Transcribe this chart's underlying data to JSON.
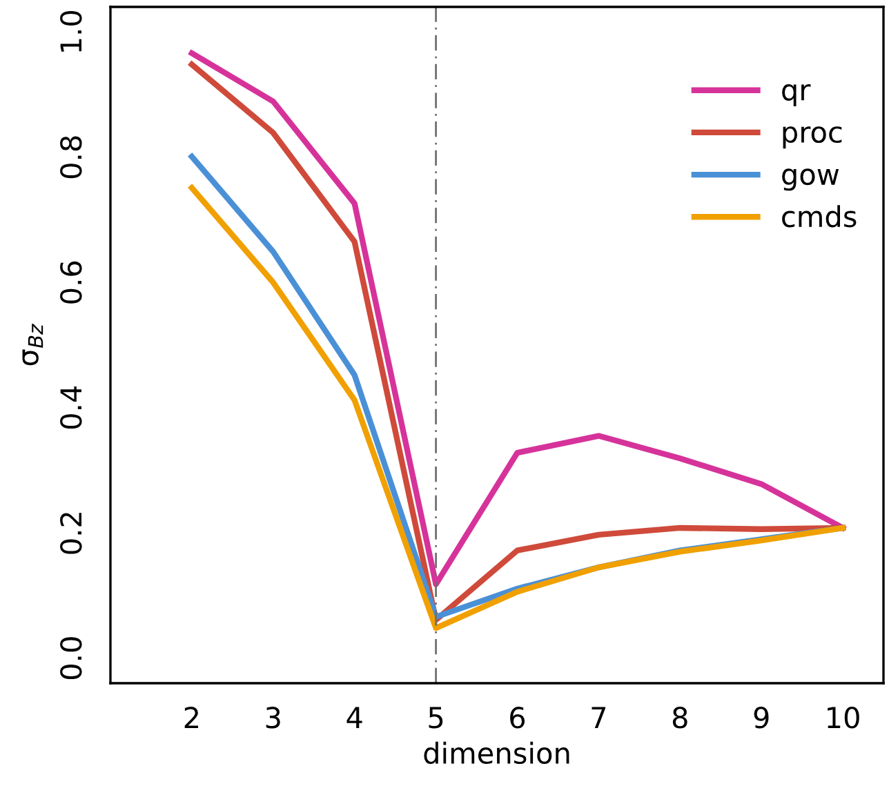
{
  "chart_data": {
    "type": "line",
    "xlabel": "dimension",
    "ylabel": "σ$_{Bz}$",
    "x": [
      2,
      3,
      4,
      5,
      6,
      7,
      8,
      9,
      10
    ],
    "xlim": [
      1,
      10.5
    ],
    "xticks": [
      2,
      3,
      4,
      5,
      6,
      7,
      8,
      9,
      10
    ],
    "ylim": [
      -0.04,
      1.04
    ],
    "yticks": [
      {
        "value": 0,
        "label": "0.0"
      },
      {
        "value": 0.2,
        "label": "0.2"
      },
      {
        "value": 0.4,
        "label": "0.4"
      },
      {
        "value": 0.6,
        "label": "0.6"
      },
      {
        "value": 0.8,
        "label": "0.8"
      },
      {
        "value": 1,
        "label": "1.0"
      }
    ],
    "series": [
      {
        "name": "qr",
        "color": "#d6339a",
        "values": [
          0.966,
          0.889,
          0.726,
          0.118,
          0.328,
          0.355,
          0.319,
          0.278,
          0.208
        ]
      },
      {
        "name": "proc",
        "color": "#cf4a3a",
        "values": [
          0.948,
          0.839,
          0.665,
          0.061,
          0.172,
          0.197,
          0.208,
          0.206,
          0.208
        ]
      },
      {
        "name": "gow",
        "color": "#4a90d6",
        "values": [
          0.801,
          0.649,
          0.452,
          0.066,
          0.111,
          0.145,
          0.172,
          0.19,
          0.208
        ]
      },
      {
        "name": "cmds",
        "color": "#f0a000",
        "values": [
          0.751,
          0.6,
          0.412,
          0.048,
          0.106,
          0.145,
          0.17,
          0.188,
          0.208
        ]
      }
    ],
    "ref_lines": [
      {
        "axis": "x",
        "value": 5,
        "color": "#707070",
        "line_style": "dashed"
      }
    ],
    "legend": "right",
    "grid": false,
    "marker": "none",
    "line_style": "solid"
  }
}
